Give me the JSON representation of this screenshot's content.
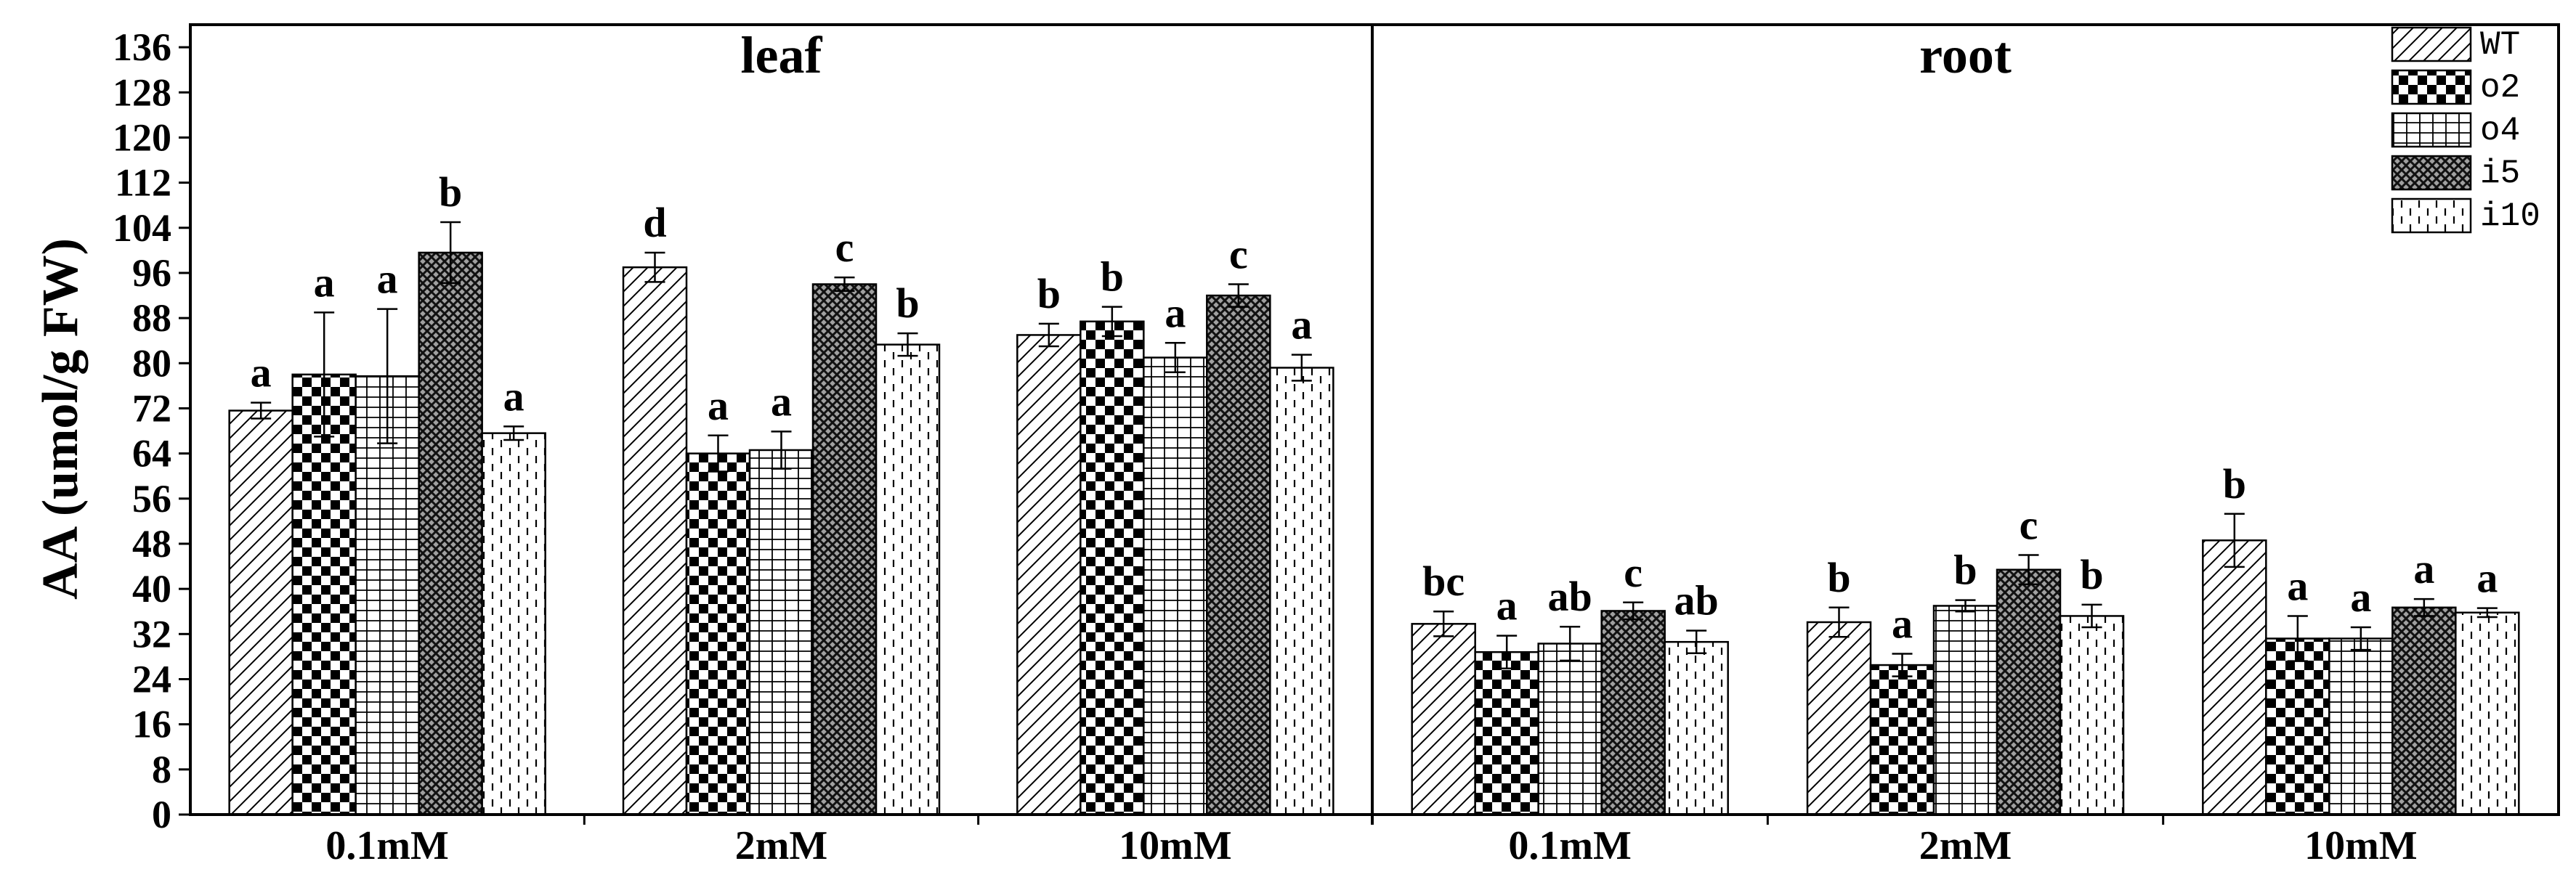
{
  "chart_data": {
    "type": "bar",
    "ylabel": "AA (umol/g FW)",
    "ylim": [
      0,
      140
    ],
    "yticks": [
      0,
      8,
      16,
      24,
      32,
      40,
      48,
      56,
      64,
      72,
      80,
      88,
      96,
      104,
      112,
      120,
      128,
      136
    ],
    "grid": false,
    "legend": {
      "position": "top-right",
      "entries": [
        "WT",
        "o2",
        "o4",
        "i5",
        "i10"
      ]
    },
    "panels": [
      {
        "title": "leaf",
        "categories": [
          "0.1mM",
          "2mM",
          "10mM"
        ],
        "series": [
          {
            "name": "WT",
            "values": [
              71.6,
              97.0,
              85.0
            ],
            "errors": [
              1.4,
              2.6,
              2.0
            ],
            "letters": [
              "a",
              "d",
              "b"
            ]
          },
          {
            "name": "o2",
            "values": [
              78.0,
              64.0,
              87.4
            ],
            "errors": [
              11.0,
              3.2,
              2.6
            ],
            "letters": [
              "a",
              "a",
              "b"
            ]
          },
          {
            "name": "o4",
            "values": [
              77.7,
              64.6,
              81.0
            ],
            "errors": [
              11.9,
              3.3,
              2.6
            ],
            "letters": [
              "a",
              "a",
              "a"
            ]
          },
          {
            "name": "i5",
            "values": [
              99.6,
              94.0,
              92.0
            ],
            "errors": [
              5.4,
              1.2,
              2.0
            ],
            "letters": [
              "b",
              "c",
              "c"
            ]
          },
          {
            "name": "i10",
            "values": [
              67.6,
              83.3,
              79.2
            ],
            "errors": [
              1.2,
              2.0,
              2.3
            ],
            "letters": [
              "a",
              "b",
              "a"
            ]
          }
        ]
      },
      {
        "title": "root",
        "categories": [
          "0.1mM",
          "2mM",
          "10mM"
        ],
        "series": [
          {
            "name": "WT",
            "values": [
              33.8,
              34.1,
              48.6
            ],
            "errors": [
              2.2,
              2.6,
              4.7
            ],
            "letters": [
              "bc",
              "b",
              "b"
            ]
          },
          {
            "name": "o2",
            "values": [
              28.8,
              26.5,
              31.2
            ],
            "errors": [
              2.9,
              2.0,
              4.0
            ],
            "letters": [
              "a",
              "a",
              "a"
            ]
          },
          {
            "name": "o4",
            "values": [
              30.3,
              37.0,
              31.2
            ],
            "errors": [
              3.0,
              1.0,
              2.0
            ],
            "letters": [
              "ab",
              "b",
              "a"
            ]
          },
          {
            "name": "i5",
            "values": [
              36.1,
              43.4,
              36.7
            ],
            "errors": [
              1.5,
              2.6,
              1.5
            ],
            "letters": [
              "c",
              "c",
              "a"
            ]
          },
          {
            "name": "i10",
            "values": [
              30.6,
              35.2,
              35.8
            ],
            "errors": [
              2.0,
              2.0,
              0.8
            ],
            "letters": [
              "ab",
              "b",
              "a"
            ]
          }
        ]
      }
    ]
  }
}
